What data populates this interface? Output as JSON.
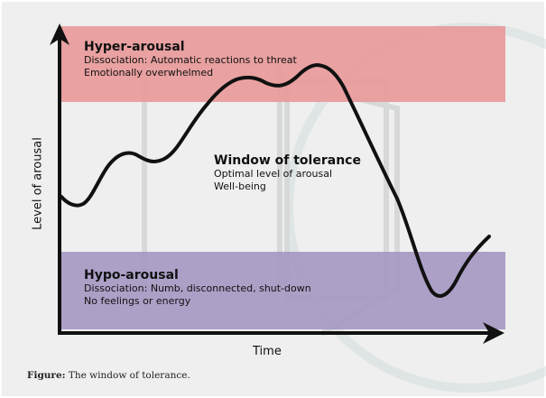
{
  "hyper": {
    "title": "Hyper-arousal",
    "lines": [
      "Dissociation: Automatic reactions to threat",
      "Emotionally overwhelmed"
    ],
    "color": "#e89a9a"
  },
  "window": {
    "title": "Window of tolerance",
    "lines": [
      "Optimal level of arousal",
      "Well-being"
    ]
  },
  "hypo": {
    "title": "Hypo-arousal",
    "lines": [
      "Dissociation: Numb, disconnected, shut-down",
      "No feelings or energy"
    ],
    "color": "#a99bc4"
  },
  "axes": {
    "y_label": "Level of arousal",
    "x_label": "Time"
  },
  "caption": {
    "label": "Figure:",
    "text": " The window of tolerance."
  }
}
